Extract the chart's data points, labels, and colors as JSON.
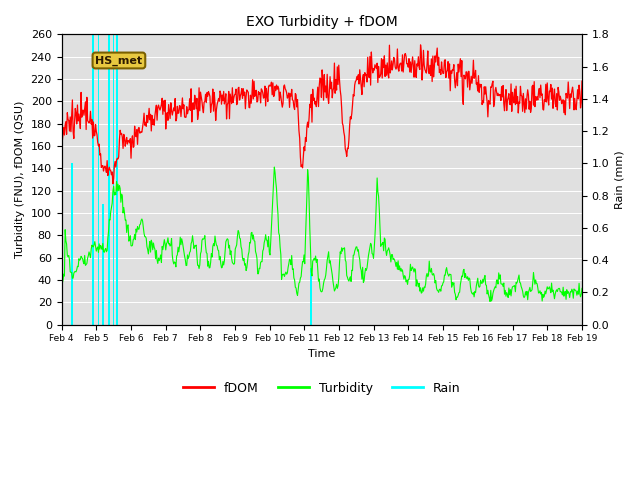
{
  "title": "EXO Turbidity + fDOM",
  "xlabel": "Time",
  "ylabel_left": "Turbidity (FNU), fDOM (QSU)",
  "ylabel_right": "Rain (mm)",
  "ylim_left": [
    0,
    260
  ],
  "ylim_right": [
    0,
    1.8
  ],
  "yticks_left": [
    0,
    20,
    40,
    60,
    80,
    100,
    120,
    140,
    160,
    180,
    200,
    220,
    240,
    260
  ],
  "yticks_right": [
    0.0,
    0.2,
    0.4,
    0.6,
    0.8,
    1.0,
    1.2,
    1.4,
    1.6,
    1.8
  ],
  "xtick_labels": [
    "Feb 4",
    "Feb 5",
    "Feb 6",
    "Feb 7",
    "Feb 8",
    "Feb 9",
    "Feb 10",
    "Feb 11",
    "Feb 12",
    "Feb 13",
    "Feb 14",
    "Feb 15",
    "Feb 16",
    "Feb 17",
    "Feb 18",
    "Feb 19"
  ],
  "fdom_color": "#ff0000",
  "turbidity_color": "#00ff00",
  "rain_color": "#00ffff",
  "background_color": "#e0e0e0",
  "annotation_text": "HS_met",
  "legend_entries": [
    "fDOM",
    "Turbidity",
    "Rain"
  ],
  "n_points": 720
}
